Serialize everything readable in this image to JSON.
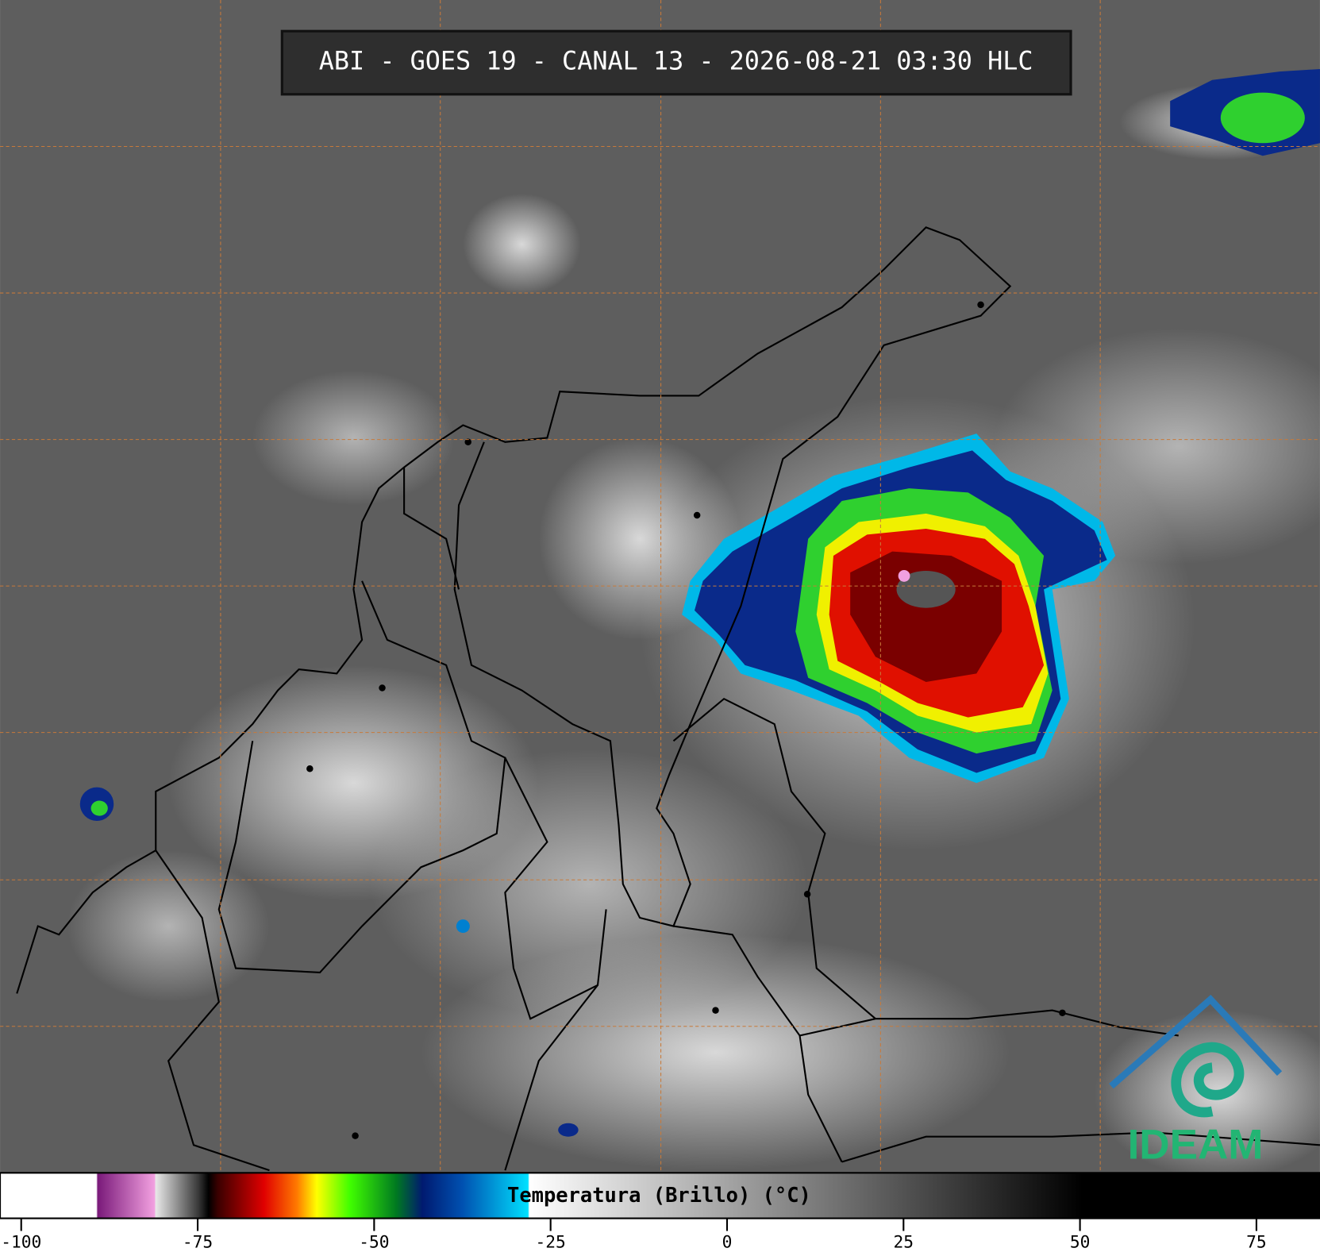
{
  "header": {
    "title": "ABI - GOES 19 - CANAL 13 - 2026-08-21 03:30 HLC"
  },
  "colorbar": {
    "label": "Temperatura (Brillo) (°C)",
    "lim": [
      -103,
      84
    ],
    "ticks": [
      -100,
      -75,
      -50,
      -25,
      0,
      25,
      50,
      75
    ]
  },
  "logo": {
    "text": "IDEAM"
  }
}
